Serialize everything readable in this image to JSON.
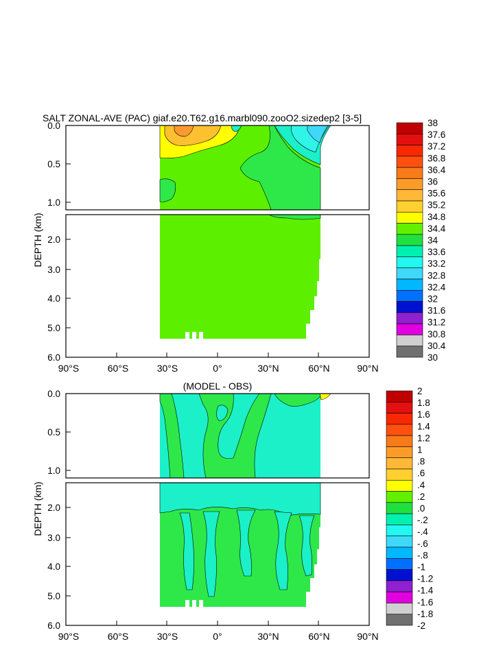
{
  "chart_data": [
    {
      "type": "heatmap",
      "title": "SALT ZONAL-AVE (PAC) giaf.e20.T62.g16.marbl090.zooO2.sizedep2 [3-5]",
      "ylabel": "DEPTH (km)",
      "xlabel": "",
      "x_ticks": [
        "90°S",
        "60°S",
        "30°S",
        "0°",
        "30°N",
        "60°N",
        "90°N"
      ],
      "x_tick_values": [
        -90,
        -60,
        -30,
        0,
        30,
        60,
        90
      ],
      "y_ticks_upper": [
        "0.0",
        "0.5",
        "1.0"
      ],
      "y_tick_values_upper": [
        0.0,
        0.5,
        1.0
      ],
      "y_ticks_lower": [
        "2.0",
        "3.0",
        "4.0",
        "5.0",
        "6.0"
      ],
      "y_tick_values_lower": [
        2.0,
        3.0,
        4.0,
        5.0,
        6.0
      ],
      "xlim": [
        -90,
        90
      ],
      "ylim_upper": [
        0,
        1.1
      ],
      "ylim_lower": [
        1.1,
        6.0
      ],
      "colorbar": {
        "labels": [
          "38",
          "37.6",
          "37.2",
          "36.8",
          "36.4",
          "36",
          "35.6",
          "35.2",
          "34.8",
          "34.4",
          "34",
          "33.6",
          "33.2",
          "32.8",
          "32.4",
          "32",
          "31.6",
          "31.2",
          "30.8",
          "30.4",
          "30"
        ],
        "colors": [
          "#c00000",
          "#e41010",
          "#f82800",
          "#ff5010",
          "#f87a18",
          "#fc9c28",
          "#ffb838",
          "#ffd030",
          "#ffff00",
          "#60f000",
          "#20e040",
          "#00f0b0",
          "#20f8f0",
          "#40d8f8",
          "#00b8ff",
          "#0070ff",
          "#0010d0",
          "#9020d0",
          "#e000e0",
          "#d0d0d0",
          "#707070"
        ]
      }
    },
    {
      "type": "heatmap",
      "title": "(MODEL - OBS)",
      "ylabel": "DEPTH (km)",
      "xlabel": "",
      "x_ticks": [
        "90°S",
        "60°S",
        "30°S",
        "0°",
        "30°N",
        "60°N",
        "90°N"
      ],
      "x_tick_values": [
        -90,
        -60,
        -30,
        0,
        30,
        60,
        90
      ],
      "y_ticks_upper": [
        "0.0",
        "0.5",
        "1.0"
      ],
      "y_tick_values_upper": [
        0.0,
        0.5,
        1.0
      ],
      "y_ticks_lower": [
        "2.0",
        "3.0",
        "4.0",
        "5.0",
        "6.0"
      ],
      "y_tick_values_lower": [
        2.0,
        3.0,
        4.0,
        5.0,
        6.0
      ],
      "xlim": [
        -90,
        90
      ],
      "ylim_upper": [
        0,
        1.1
      ],
      "ylim_lower": [
        1.1,
        6.0
      ],
      "colorbar": {
        "labels": [
          "2",
          "1.8",
          "1.6",
          "1.4",
          "1.2",
          "1",
          ".8",
          ".6",
          ".4",
          ".2",
          ".0",
          "-.2",
          "-.4",
          "-.6",
          "-.8",
          "-1",
          "-1.2",
          "-1.4",
          "-1.6",
          "-1.8",
          "-2"
        ],
        "colors": [
          "#c00000",
          "#e41010",
          "#f82800",
          "#ff5010",
          "#f87a18",
          "#fc9c28",
          "#ffb838",
          "#ffd030",
          "#ffff00",
          "#60f000",
          "#20e040",
          "#00f0b0",
          "#20f8f0",
          "#40d8f8",
          "#00b8ff",
          "#0070ff",
          "#0010d0",
          "#9020d0",
          "#e000e0",
          "#d0d0d0",
          "#707070"
        ]
      }
    }
  ],
  "colors": {
    "fill_green_bright": "#5cf000",
    "fill_green": "#2ee84a",
    "fill_cyan": "#1cf0c8",
    "fill_cyan_light": "#30f4e8",
    "fill_yellow": "#ffff00",
    "fill_orange": "#fcc030",
    "fill_orange_dark": "#f89a30",
    "fill_blue_light": "#40d8f8",
    "frame": "#000000"
  }
}
